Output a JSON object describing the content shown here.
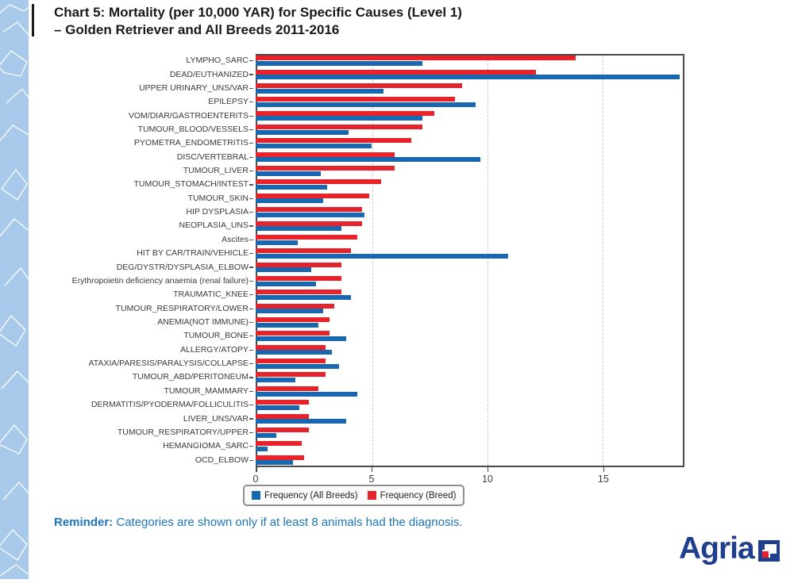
{
  "page": {
    "title_line1": "Chart 5: Mortality (per 10,000 YAR) for Specific Causes (Level 1)",
    "title_line2": "–  Golden Retriever and All Breeds 2011-2016"
  },
  "reminder": {
    "label": "Reminder:",
    "text": " Categories are shown only if at least 8 animals had the diagnosis."
  },
  "logo": {
    "text": "Agria"
  },
  "colors": {
    "all_breeds_blue": "#1a67b1",
    "breed_red": "#e6232a",
    "title_text": "#1a1a1a",
    "reminder_blue": "#1c75bc",
    "logo_blue": "#1f3f8e",
    "sidebar_blue": "#a8c9e9",
    "plot_border": "#4a4a4a"
  },
  "chart_data": {
    "type": "bar",
    "orientation": "horizontal",
    "title": "Mortality (per 10,000 YAR) for Specific Causes (Level 1) - Golden Retriever and All Breeds 2011-2016",
    "xlabel": "",
    "ylabel": "",
    "xlim": [
      0,
      18.5
    ],
    "xticks": [
      0,
      5,
      10,
      15
    ],
    "grid": "vertical dashed gridlines at 5, 10, 15",
    "legend_position": "bottom center, boxed",
    "bar_order_within_group": [
      "Frequency (Breed)",
      "Frequency (All Breeds)"
    ],
    "categories": [
      "LYMPHO_SARC",
      "DEAD/EUTHANIZED",
      "UPPER URINARY_UNS/VAR",
      "EPILEPSY",
      "VOM/DIAR/GASTROENTERITS",
      "TUMOUR_BLOOD/VESSELS",
      "PYOMETRA_ENDOMETRITIS",
      "DISC/VERTEBRAL",
      "TUMOUR_LIVER",
      "TUMOUR_STOMACH/INTEST",
      "TUMOUR_SKIN",
      "HIP DYSPLASIA",
      "NEOPLASIA_UNS",
      "Ascites",
      "HIT BY CAR/TRAIN/VEHICLE",
      "DEG/DYSTR/DYSPLASIA_ELBOW",
      "Erythropoietin deficiency anaemia (renal failure)",
      "TRAUMATIC_KNEE",
      "TUMOUR_RESPIRATORY/LOWER",
      "ANEMIA(NOT IMMUNE)",
      "TUMOUR_BONE",
      "ALLERGY/ATOPY",
      "ATAXIA/PARESIS/PARALYSIS/COLLAPSE",
      "TUMOUR_ABD/PERITONEUM",
      "TUMOUR_MAMMARY",
      "DERMATITIS/PYODERMA/FOLLICULITIS",
      "LIVER_UNS/VAR",
      "TUMOUR_RESPIRATORY/UPPER",
      "HEMANGIOMA_SARC",
      "OCD_ELBOW"
    ],
    "series": [
      {
        "name": "Frequency (All Breeds)",
        "color": "#1a67b1",
        "values": [
          7.2,
          18.3,
          5.5,
          9.5,
          7.2,
          4.0,
          5.0,
          9.7,
          2.8,
          3.1,
          2.9,
          4.7,
          3.7,
          1.8,
          10.9,
          2.4,
          2.6,
          4.1,
          2.9,
          2.7,
          3.9,
          3.3,
          3.6,
          1.7,
          4.4,
          1.9,
          3.9,
          0.9,
          0.5,
          1.6
        ]
      },
      {
        "name": "Frequency (Breed)",
        "color": "#e6232a",
        "values": [
          13.8,
          12.1,
          8.9,
          8.6,
          7.7,
          7.2,
          6.7,
          6.0,
          6.0,
          5.4,
          4.9,
          4.6,
          4.6,
          4.4,
          4.1,
          3.7,
          3.7,
          3.7,
          3.4,
          3.2,
          3.2,
          3.0,
          3.0,
          3.0,
          2.7,
          2.3,
          2.3,
          2.3,
          2.0,
          2.1
        ]
      }
    ]
  }
}
